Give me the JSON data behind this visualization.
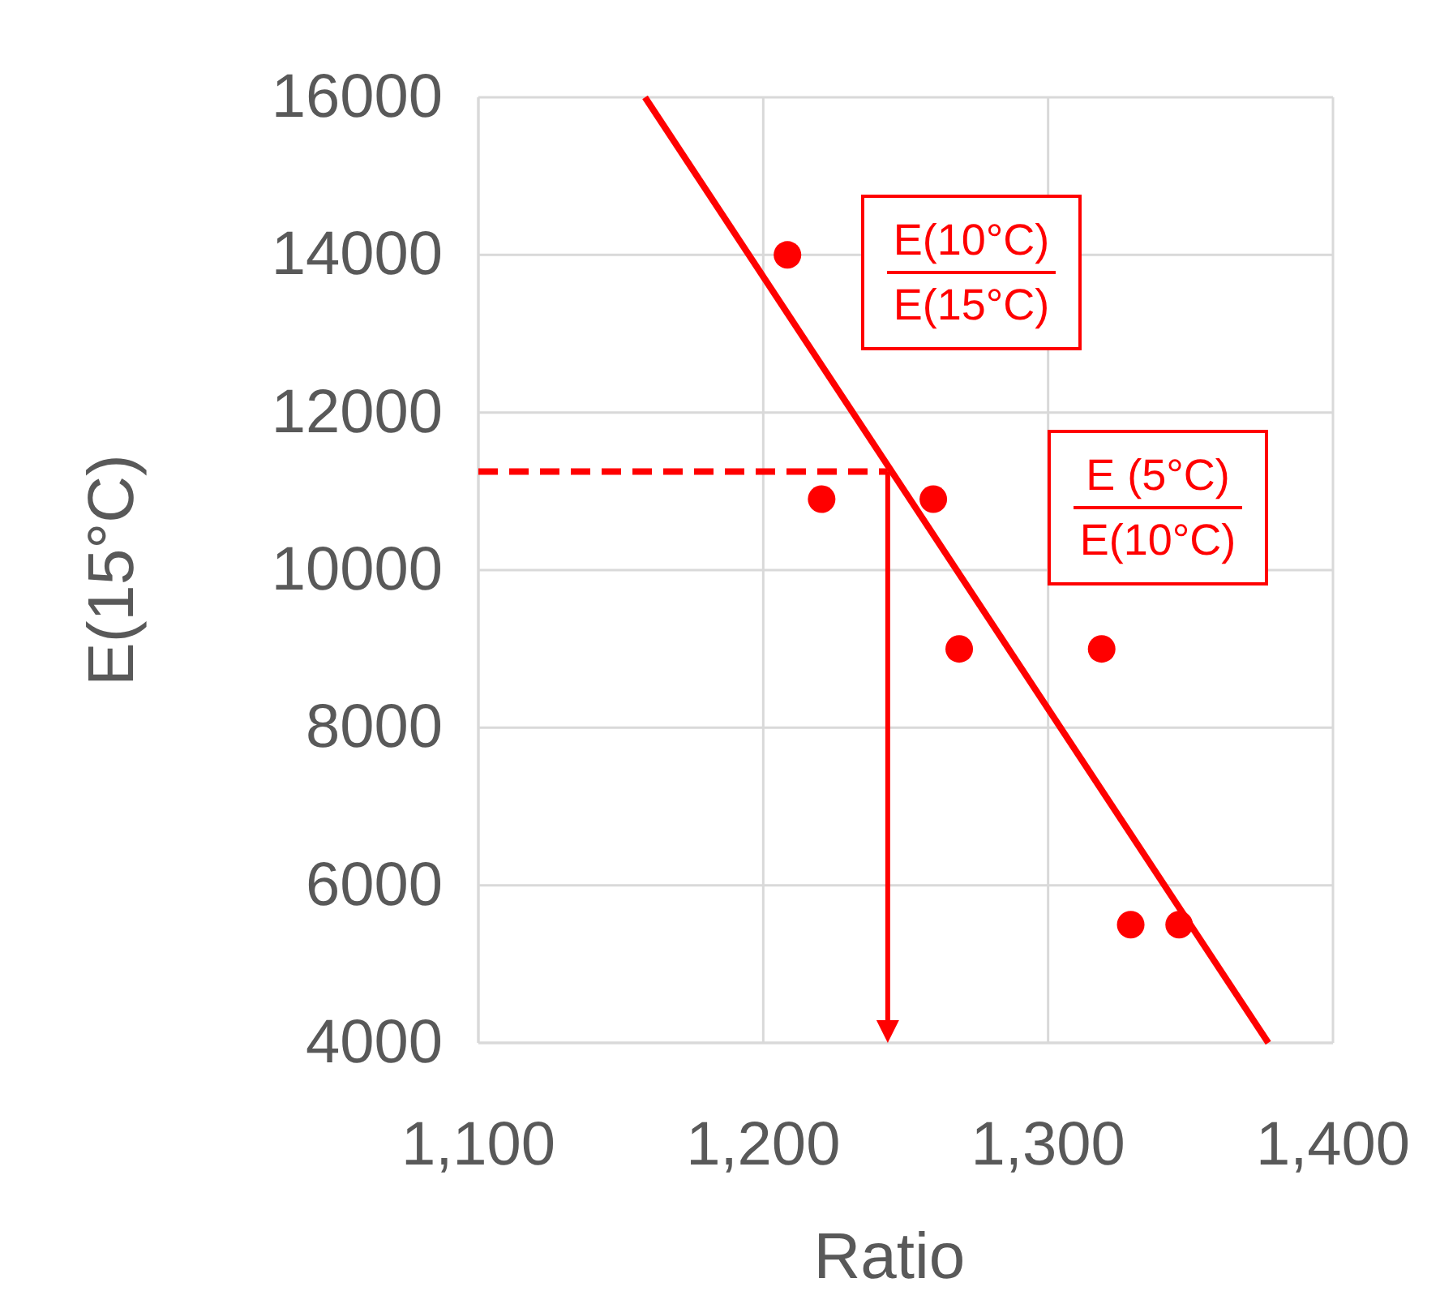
{
  "chart_data": {
    "type": "scatter",
    "xlabel": "Ratio",
    "ylabel": "E(15°C)",
    "xlim": [
      1100,
      1400
    ],
    "xticks": [
      {
        "value": 1100,
        "label": "1,100"
      },
      {
        "value": 1200,
        "label": "1,200"
      },
      {
        "value": 1300,
        "label": "1,300"
      },
      {
        "value": 1400,
        "label": "1,400"
      }
    ],
    "ylim": [
      4000,
      16000
    ],
    "yticks": [
      4000,
      6000,
      8000,
      10000,
      12000,
      14000,
      16000
    ],
    "grid": true,
    "series": [
      {
        "color": "#ff0000",
        "marker": "circle",
        "x": [
          1208.5,
          1220.5,
          1259.7,
          1268.8,
          1318.8,
          1329,
          1346
        ],
        "values": [
          14000,
          10900,
          10900,
          9000,
          9000,
          5500,
          5500
        ]
      },
      {
        "type": "line",
        "color": "#ff0000",
        "line_style": "solid",
        "marker": "none",
        "x": [
          1158.5,
          1377.3
        ],
        "values": [
          16000,
          4000
        ]
      },
      {
        "type": "line",
        "color": "#ff0000",
        "line_style": "dashed",
        "marker": "none",
        "x": [
          1100,
          1243.7
        ],
        "values": [
          11250,
          11250
        ]
      }
    ],
    "annotations": [
      "E(10°C)\nE(15°C)",
      "E (5°C)\nE(10°C)"
    ]
  }
}
